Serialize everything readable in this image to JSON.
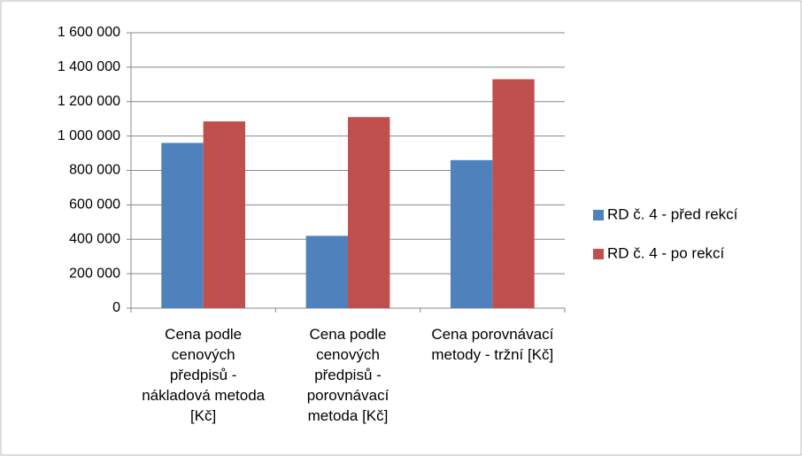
{
  "chart_data": {
    "type": "bar",
    "categories": [
      "Cena podle cenových předpisů - nákladová metoda [Kč]",
      "Cena podle cenových předpisů - porovnávací metoda [Kč]",
      "Cena porovnávací metody - tržní [Kč]"
    ],
    "series": [
      {
        "name": "RD č. 4 - před rekcí",
        "color": "#4f81bd",
        "values": [
          960000,
          420000,
          860000
        ]
      },
      {
        "name": "RD č. 4 - po rekcí",
        "color": "#c0504d",
        "values": [
          1085000,
          1110000,
          1330000
        ]
      }
    ],
    "ylim": [
      0,
      1600000
    ],
    "yticks": [
      0,
      {
        "value": 200000,
        "label": "200 000"
      },
      {
        "value": 400000,
        "label": "400 000"
      },
      {
        "value": 600000,
        "label": "600 000"
      },
      {
        "value": 800000,
        "label": "800 000"
      },
      {
        "value": 1000000,
        "label": "1 000 000"
      },
      {
        "value": 1200000,
        "label": "1 200 000"
      },
      {
        "value": 1400000,
        "label": "1 400 000"
      },
      {
        "value": 1600000,
        "label": "1 600 000"
      }
    ],
    "grid": true,
    "legend": "right"
  }
}
